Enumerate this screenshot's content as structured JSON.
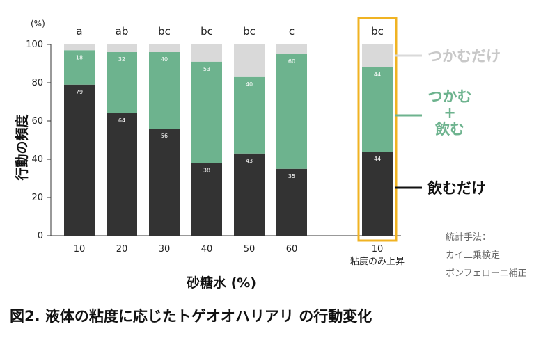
{
  "chart_data": {
    "type": "bar",
    "stacked": true,
    "title": "",
    "ylabel": "行動の頻度",
    "yunit": "(%)",
    "xlabel": "砂糖水 (%)",
    "ylim": [
      0,
      100
    ],
    "yticks": [
      0,
      20,
      40,
      60,
      80,
      100
    ],
    "categories": [
      "10",
      "20",
      "30",
      "40",
      "50",
      "60",
      "10"
    ],
    "category_sublabels": [
      "",
      "",
      "",
      "",
      "",
      "",
      "粘度のみ上昇"
    ],
    "significance": [
      "a",
      "ab",
      "bc",
      "bc",
      "bc",
      "c",
      "bc"
    ],
    "highlighted_index": 6,
    "series": [
      {
        "name": "飲むだけ",
        "values": [
          79,
          64,
          56,
          38,
          43,
          35,
          44
        ],
        "color": "#333333"
      },
      {
        "name": "つかむ + 飲む",
        "values": [
          18,
          32,
          40,
          53,
          40,
          60,
          44
        ],
        "color": "#6db38e"
      },
      {
        "name": "つかむだけ",
        "values": [
          3,
          4,
          4,
          9,
          17,
          5,
          12
        ],
        "color": "#d9d9d9"
      }
    ],
    "legend_placement": "right",
    "grid": false
  },
  "legend": {
    "tsukamu_only": "つかむだけ",
    "tsukamu_nomu_line1": "つかむ",
    "tsukamu_nomu_plus": "+",
    "tsukamu_nomu_line2": "飲む",
    "nomu_only": "飲むだけ"
  },
  "stats_note": {
    "line1": "統計手法：",
    "line2": "カイ二乗検定",
    "line3": "ボンフェローニ補正"
  },
  "caption": "図2. 液体の粘度に応じたトゲオオハリアリ の行動変化",
  "colors": {
    "drink_only": "#333333",
    "grab_and_drink": "#6db38e",
    "grab_only": "#d9d9d9",
    "highlight_box": "#f0b323"
  }
}
